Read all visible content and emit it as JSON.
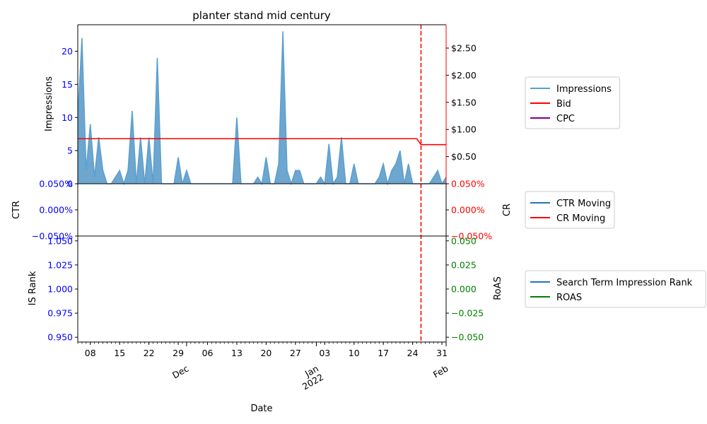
{
  "chart_data": {
    "type": "area",
    "title": "planter stand mid century",
    "xlabel": "Date",
    "x_range": [
      "2021-11-05",
      "2022-02-01"
    ],
    "x_day_ticks": [
      {
        "date": "2021-11-08",
        "label": "08"
      },
      {
        "date": "2021-11-15",
        "label": "15"
      },
      {
        "date": "2021-11-22",
        "label": "22"
      },
      {
        "date": "2021-11-29",
        "label": "29"
      },
      {
        "date": "2021-12-06",
        "label": "06"
      },
      {
        "date": "2021-12-13",
        "label": "13"
      },
      {
        "date": "2021-12-20",
        "label": "20"
      },
      {
        "date": "2021-12-27",
        "label": "27"
      },
      {
        "date": "2022-01-03",
        "label": "03"
      },
      {
        "date": "2022-01-10",
        "label": "10"
      },
      {
        "date": "2022-01-17",
        "label": "17"
      },
      {
        "date": "2022-01-24",
        "label": "24"
      },
      {
        "date": "2022-01-31",
        "label": "31"
      }
    ],
    "x_month_ticks": [
      {
        "date": "2021-12-01",
        "label": "Dec"
      },
      {
        "date": "2022-01-01",
        "label": "Jan\n2022"
      },
      {
        "date": "2022-02-01",
        "label": "Feb"
      }
    ],
    "vline_date": "2022-01-26",
    "top_panel": {
      "ylabel_left": "Impressions",
      "ylim_left": [
        0,
        24
      ],
      "yticks_left": [
        0,
        5,
        10,
        15,
        20
      ],
      "ylim_right": [
        0,
        2.93
      ],
      "yticks_right": [
        {
          "value": 0.5,
          "label": "$0.50"
        },
        {
          "value": 1.0,
          "label": "$1.00"
        },
        {
          "value": 1.5,
          "label": "$1.50"
        },
        {
          "value": 2.0,
          "label": "$2.00"
        },
        {
          "value": 2.5,
          "label": "$2.50"
        }
      ],
      "impressions": [
        {
          "date": "2021-11-05",
          "value": 10
        },
        {
          "date": "2021-11-06",
          "value": 22
        },
        {
          "date": "2021-11-07",
          "value": 2
        },
        {
          "date": "2021-11-08",
          "value": 9
        },
        {
          "date": "2021-11-09",
          "value": 1
        },
        {
          "date": "2021-11-10",
          "value": 7
        },
        {
          "date": "2021-11-11",
          "value": 2
        },
        {
          "date": "2021-11-12",
          "value": 0
        },
        {
          "date": "2021-11-13",
          "value": 0
        },
        {
          "date": "2021-11-14",
          "value": 1
        },
        {
          "date": "2021-11-15",
          "value": 2
        },
        {
          "date": "2021-11-16",
          "value": 0
        },
        {
          "date": "2021-11-17",
          "value": 2
        },
        {
          "date": "2021-11-18",
          "value": 11
        },
        {
          "date": "2021-11-19",
          "value": 0
        },
        {
          "date": "2021-11-20",
          "value": 7
        },
        {
          "date": "2021-11-21",
          "value": 0
        },
        {
          "date": "2021-11-22",
          "value": 7
        },
        {
          "date": "2021-11-23",
          "value": 0
        },
        {
          "date": "2021-11-24",
          "value": 19
        },
        {
          "date": "2021-11-25",
          "value": 0
        },
        {
          "date": "2021-11-26",
          "value": 0
        },
        {
          "date": "2021-11-27",
          "value": 0
        },
        {
          "date": "2021-11-28",
          "value": 0
        },
        {
          "date": "2021-11-29",
          "value": 4
        },
        {
          "date": "2021-11-30",
          "value": 0
        },
        {
          "date": "2021-12-01",
          "value": 2
        },
        {
          "date": "2021-12-02",
          "value": 0
        },
        {
          "date": "2021-12-12",
          "value": 0
        },
        {
          "date": "2021-12-13",
          "value": 10
        },
        {
          "date": "2021-12-14",
          "value": 0
        },
        {
          "date": "2021-12-17",
          "value": 0
        },
        {
          "date": "2021-12-18",
          "value": 1
        },
        {
          "date": "2021-12-19",
          "value": 0
        },
        {
          "date": "2021-12-20",
          "value": 4
        },
        {
          "date": "2021-12-21",
          "value": 0
        },
        {
          "date": "2021-12-22",
          "value": 0
        },
        {
          "date": "2021-12-23",
          "value": 3
        },
        {
          "date": "2021-12-24",
          "value": 23
        },
        {
          "date": "2021-12-25",
          "value": 2
        },
        {
          "date": "2021-12-26",
          "value": 0
        },
        {
          "date": "2021-12-27",
          "value": 2
        },
        {
          "date": "2021-12-28",
          "value": 2
        },
        {
          "date": "2021-12-29",
          "value": 0
        },
        {
          "date": "2022-01-01",
          "value": 0
        },
        {
          "date": "2022-01-02",
          "value": 1
        },
        {
          "date": "2022-01-03",
          "value": 0
        },
        {
          "date": "2022-01-04",
          "value": 6
        },
        {
          "date": "2022-01-05",
          "value": 0
        },
        {
          "date": "2022-01-06",
          "value": 1
        },
        {
          "date": "2022-01-07",
          "value": 7
        },
        {
          "date": "2022-01-08",
          "value": 0
        },
        {
          "date": "2022-01-09",
          "value": 0
        },
        {
          "date": "2022-01-10",
          "value": 3
        },
        {
          "date": "2022-01-11",
          "value": 0
        },
        {
          "date": "2022-01-15",
          "value": 0
        },
        {
          "date": "2022-01-16",
          "value": 1
        },
        {
          "date": "2022-01-17",
          "value": 3
        },
        {
          "date": "2022-01-18",
          "value": 0
        },
        {
          "date": "2022-01-19",
          "value": 2
        },
        {
          "date": "2022-01-20",
          "value": 3
        },
        {
          "date": "2022-01-21",
          "value": 5
        },
        {
          "date": "2022-01-22",
          "value": 0
        },
        {
          "date": "2022-01-23",
          "value": 3
        },
        {
          "date": "2022-01-24",
          "value": 0
        },
        {
          "date": "2022-01-28",
          "value": 0
        },
        {
          "date": "2022-01-29",
          "value": 1
        },
        {
          "date": "2022-01-30",
          "value": 2
        },
        {
          "date": "2022-01-31",
          "value": 0
        },
        {
          "date": "2022-02-01",
          "value": 1
        },
        {
          "date": "2022-02-02",
          "value": 4
        }
      ],
      "bid": [
        {
          "date": "2021-11-05",
          "value": 0.83
        },
        {
          "date": "2022-01-25",
          "value": 0.83
        },
        {
          "date": "2022-01-26",
          "value": 0.72
        },
        {
          "date": "2022-02-02",
          "value": 0.72
        }
      ],
      "cpc": []
    },
    "middle_panel": {
      "ylabel_left": "CTR",
      "ylabel_right": "CR",
      "ylim": [
        -0.05,
        0.05
      ],
      "yticks": [
        {
          "value": 0.05,
          "label": "0.050%"
        },
        {
          "value": 0.0,
          "label": "0.000%"
        },
        {
          "value": -0.05,
          "label": "−0.050%"
        }
      ],
      "ctr_moving": [],
      "cr_moving": []
    },
    "bottom_panel": {
      "ylabel_left": "IS Rank",
      "ylabel_right": "RoAS",
      "ylim_left": [
        0.945,
        1.055
      ],
      "yticks_left": [
        {
          "value": 0.95,
          "label": "0.950"
        },
        {
          "value": 0.975,
          "label": "0.975"
        },
        {
          "value": 1.0,
          "label": "1.000"
        },
        {
          "value": 1.025,
          "label": "1.025"
        },
        {
          "value": 1.05,
          "label": "1.050"
        }
      ],
      "ylim_right": [
        -0.055,
        0.055
      ],
      "yticks_right": [
        {
          "value": 0.05,
          "label": "0.050"
        },
        {
          "value": 0.025,
          "label": "0.025"
        },
        {
          "value": 0.0,
          "label": "0.000"
        },
        {
          "value": -0.025,
          "label": "−0.025"
        },
        {
          "value": -0.05,
          "label": "−0.050"
        }
      ],
      "search_term_impression_rank": [],
      "roas": []
    },
    "legends": [
      {
        "entries": [
          {
            "label": "Impressions",
            "color": "#5b9fd0"
          },
          {
            "label": "Bid",
            "color": "#ff0000"
          },
          {
            "label": "CPC",
            "color": "#800080"
          }
        ]
      },
      {
        "entries": [
          {
            "label": "CTR Moving",
            "color": "#1f77b4"
          },
          {
            "label": "CR Moving",
            "color": "#ff0000"
          }
        ]
      },
      {
        "entries": [
          {
            "label": "Search Term Impression Rank",
            "color": "#1f77b4"
          },
          {
            "label": "ROAS",
            "color": "#008000"
          }
        ]
      }
    ],
    "colors": {
      "impressions_fill": "#1f77b4",
      "impressions_line": "#5b9fd0",
      "bid": "#ff0000",
      "left_axis": "#0000ff",
      "right_axis_top": "#ff0000",
      "right_axis_bottom": "#008000",
      "vline": "#ff0000"
    }
  }
}
